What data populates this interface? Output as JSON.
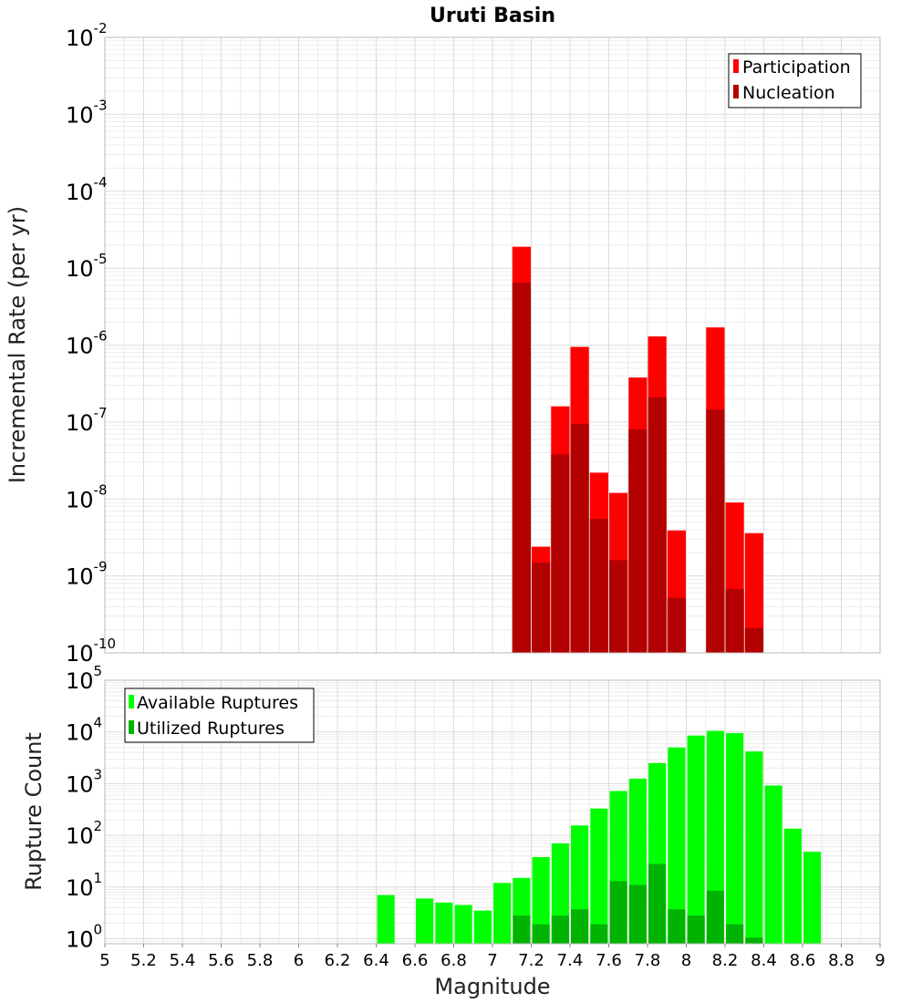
{
  "chart_data": [
    {
      "type": "bar",
      "title": "Uruti Basin",
      "xlabel": "",
      "ylabel": "Incremental Rate (per yr)",
      "xlim": [
        5,
        9
      ],
      "ylim": [
        1e-10,
        0.01
      ],
      "yscale": "log",
      "grid": true,
      "legend_position": "top-right",
      "bar_width": 0.095,
      "y_ticks": [
        {
          "base": "10",
          "exp": "-10",
          "value": 1e-10
        },
        {
          "base": "10",
          "exp": "-9",
          "value": 1e-09
        },
        {
          "base": "10",
          "exp": "-8",
          "value": 1e-08
        },
        {
          "base": "10",
          "exp": "-7",
          "value": 1e-07
        },
        {
          "base": "10",
          "exp": "-6",
          "value": 1e-06
        },
        {
          "base": "10",
          "exp": "-5",
          "value": 1e-05
        },
        {
          "base": "10",
          "exp": "-4",
          "value": 0.0001
        },
        {
          "base": "10",
          "exp": "-3",
          "value": 0.001
        },
        {
          "base": "10",
          "exp": "-2",
          "value": 0.01
        }
      ],
      "series": [
        {
          "name": "Participation",
          "color": "#ff0000",
          "x": [
            7.15,
            7.25,
            7.35,
            7.45,
            7.55,
            7.65,
            7.75,
            7.85,
            7.95,
            8.15,
            8.25,
            8.35
          ],
          "values": [
            1.9e-05,
            2.4e-09,
            1.6e-07,
            9.5e-07,
            2.2e-08,
            1.2e-08,
            3.8e-07,
            1.3e-06,
            3.9e-09,
            1.7e-06,
            9e-09,
            3.6e-09
          ]
        },
        {
          "name": "Nucleation",
          "color": "#b30000",
          "x": [
            7.15,
            7.25,
            7.35,
            7.45,
            7.55,
            7.65,
            7.75,
            7.85,
            7.95,
            8.15,
            8.25,
            8.35
          ],
          "values": [
            6.5e-06,
            1.5e-09,
            3.8e-08,
            9.5e-08,
            5.5e-09,
            1.6e-09,
            8e-08,
            2.1e-07,
            5.2e-10,
            1.45e-07,
            6.8e-10,
            2.1e-10
          ]
        }
      ]
    },
    {
      "type": "bar",
      "title": "",
      "xlabel": "Magnitude",
      "ylabel": "Rupture Count",
      "xlim": [
        5,
        9
      ],
      "ylim": [
        0.8,
        100000
      ],
      "yscale": "log",
      "grid": true,
      "legend_position": "top-left",
      "bar_width": 0.09,
      "x_ticks": [
        "5",
        "5.2",
        "5.4",
        "5.6",
        "5.8",
        "6",
        "6.2",
        "6.4",
        "6.6",
        "6.8",
        "7",
        "7.2",
        "7.4",
        "7.6",
        "7.8",
        "8",
        "8.2",
        "8.4",
        "8.6",
        "8.8",
        "9"
      ],
      "y_ticks": [
        {
          "base": "10",
          "exp": "0",
          "value": 1
        },
        {
          "base": "10",
          "exp": "1",
          "value": 10
        },
        {
          "base": "10",
          "exp": "2",
          "value": 100
        },
        {
          "base": "10",
          "exp": "3",
          "value": 1000
        },
        {
          "base": "10",
          "exp": "4",
          "value": 10000
        },
        {
          "base": "10",
          "exp": "5",
          "value": 100000
        }
      ],
      "series": [
        {
          "name": "Available Ruptures",
          "color": "#00ff00",
          "x": [
            6.45,
            6.65,
            6.75,
            6.85,
            6.95,
            7.05,
            7.15,
            7.25,
            7.35,
            7.45,
            7.55,
            7.65,
            7.75,
            7.85,
            7.95,
            8.05,
            8.15,
            8.25,
            8.35,
            8.45,
            8.55,
            8.65
          ],
          "values": [
            7,
            6,
            5,
            4.5,
            3.5,
            12,
            15,
            38,
            70,
            155,
            330,
            720,
            1250,
            2500,
            5000,
            8500,
            10500,
            9500,
            4200,
            920,
            135,
            48
          ]
        },
        {
          "name": "Utilized Ruptures",
          "color": "#00b300",
          "x": [
            7.15,
            7.25,
            7.35,
            7.45,
            7.55,
            7.65,
            7.75,
            7.85,
            7.95,
            8.05,
            8.15,
            8.25,
            8.35
          ],
          "values": [
            2.8,
            1.9,
            2.8,
            3.7,
            1.9,
            13,
            11,
            28,
            3.7,
            2.8,
            8.5,
            1.9,
            1.05
          ]
        }
      ]
    }
  ]
}
